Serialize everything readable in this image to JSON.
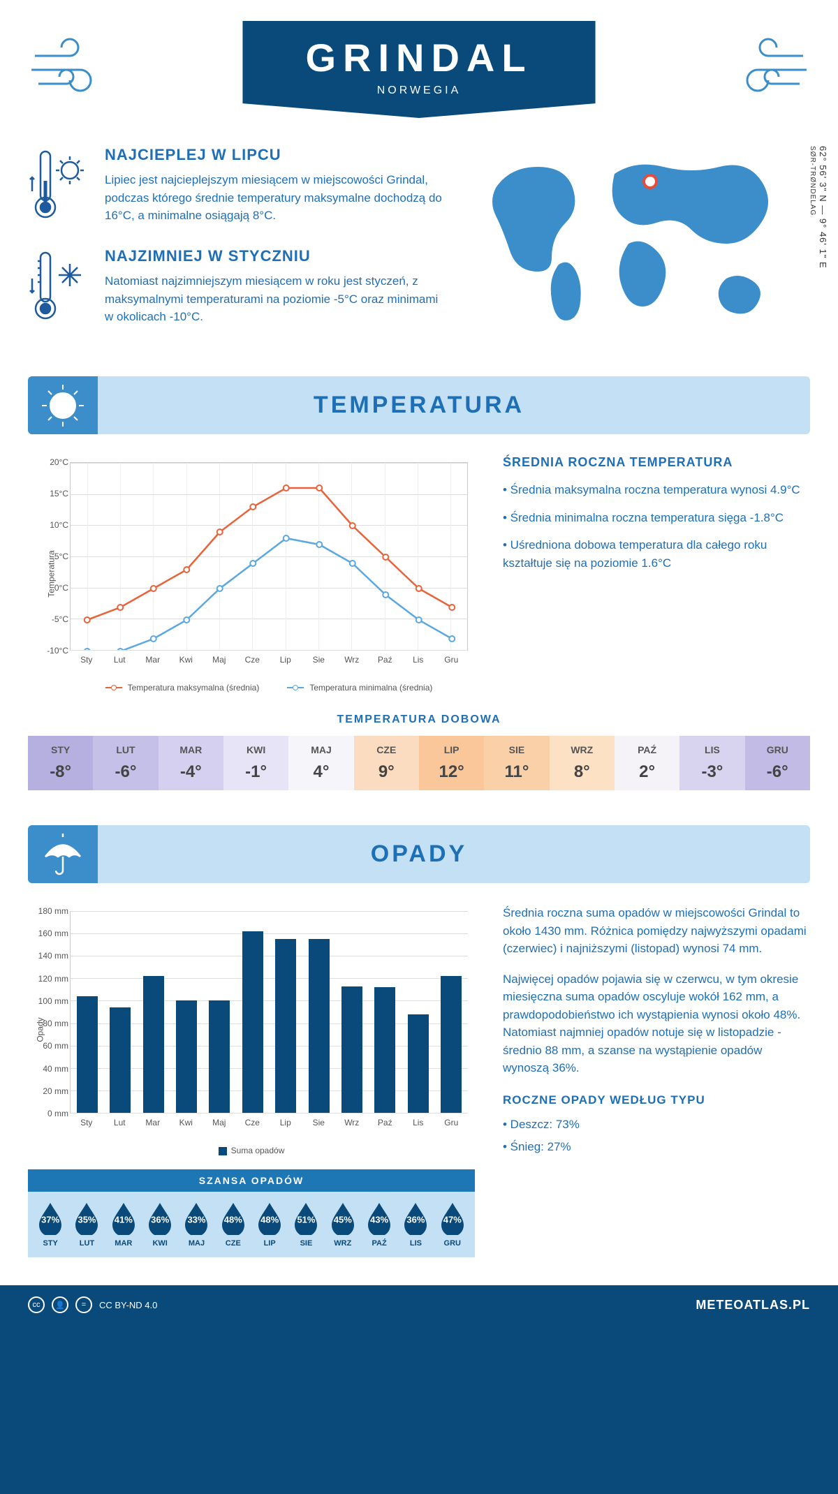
{
  "header": {
    "title": "GRINDAL",
    "country": "NORWEGIA"
  },
  "coords": {
    "lat": "62° 56' 3\" N",
    "lon": "9° 46' 1\" E",
    "region": "SØR-TRØNDELAG"
  },
  "warm": {
    "title": "NAJCIEPLEJ W LIPCU",
    "text": "Lipiec jest najcieplejszym miesiącem w miejscowości Grindal, podczas którego średnie temperatury maksymalne dochodzą do 16°C, a minimalne osiągają 8°C."
  },
  "cold": {
    "title": "NAJZIMNIEJ W STYCZNIU",
    "text": "Natomiast najzimniejszym miesiącem w roku jest styczeń, z maksymalnymi temperaturami na poziomie -5°C oraz minimami w okolicach -10°C."
  },
  "tempSection": {
    "title": "TEMPERATURA"
  },
  "tempChart": {
    "months": [
      "Sty",
      "Lut",
      "Mar",
      "Kwi",
      "Maj",
      "Cze",
      "Lip",
      "Sie",
      "Wrz",
      "Paź",
      "Lis",
      "Gru"
    ],
    "max": [
      -5,
      -3,
      0,
      3,
      9,
      13,
      16,
      16,
      10,
      5,
      0,
      -3
    ],
    "min": [
      -10,
      -10,
      -8,
      -5,
      0,
      4,
      8,
      7,
      4,
      -1,
      -5,
      -8
    ],
    "ymin": -10,
    "ymax": 20,
    "ystep": 5,
    "ylabel": "Temperatura",
    "max_color": "#e8623a",
    "min_color": "#5ba8e0",
    "legend_max": "Temperatura maksymalna (średnia)",
    "legend_min": "Temperatura minimalna (średnia)",
    "grid_color": "#dddddd"
  },
  "tempSide": {
    "title": "ŚREDNIA ROCZNA TEMPERATURA",
    "lines": [
      "• Średnia maksymalna roczna temperatura wynosi 4.9°C",
      "• Średnia minimalna roczna temperatura sięga -1.8°C",
      "• Uśredniona dobowa temperatura dla całego roku kształtuje się na poziomie 1.6°C"
    ]
  },
  "daily": {
    "title": "TEMPERATURA DOBOWA",
    "months": [
      "STY",
      "LUT",
      "MAR",
      "KWI",
      "MAJ",
      "CZE",
      "LIP",
      "SIE",
      "WRZ",
      "PAŹ",
      "LIS",
      "GRU"
    ],
    "values": [
      "-8°",
      "-6°",
      "-4°",
      "-1°",
      "4°",
      "9°",
      "12°",
      "11°",
      "8°",
      "2°",
      "-3°",
      "-6°"
    ],
    "colors": [
      "#b5b0e0",
      "#c5c0e8",
      "#d5d0f0",
      "#e7e4f7",
      "#f5f5fa",
      "#fbdcc0",
      "#f9c79a",
      "#fad0a8",
      "#fce1c5",
      "#f5f3f8",
      "#d8d3ef",
      "#c1bbe6"
    ]
  },
  "precipSection": {
    "title": "OPADY"
  },
  "precipChart": {
    "months": [
      "Sty",
      "Lut",
      "Mar",
      "Kwi",
      "Maj",
      "Cze",
      "Lip",
      "Sie",
      "Wrz",
      "Paź",
      "Lis",
      "Gru"
    ],
    "values": [
      104,
      94,
      122,
      100,
      100,
      162,
      155,
      155,
      113,
      112,
      88,
      122
    ],
    "ymax": 180,
    "ystep": 20,
    "ylabel": "Opady",
    "bar_color": "#0a4a7a",
    "legend": "Suma opadów"
  },
  "precipText": {
    "p1": "Średnia roczna suma opadów w miejscowości Grindal to około 1430 mm. Różnica pomiędzy najwyższymi opadami (czerwiec) i najniższymi (listopad) wynosi 74 mm.",
    "p2": "Najwięcej opadów pojawia się w czerwcu, w tym okresie miesięczna suma opadów oscyluje wokół 162 mm, a prawdopodobieństwo ich wystąpienia wynosi około 48%. Natomiast najmniej opadów notuje się w listopadzie - średnio 88 mm, a szanse na wystąpienie opadów wynoszą 36%.",
    "type_title": "ROCZNE OPADY WEDŁUG TYPU",
    "type_lines": [
      "• Deszcz: 73%",
      "• Śnieg: 27%"
    ]
  },
  "chance": {
    "title": "SZANSA OPADÓW",
    "months": [
      "STY",
      "LUT",
      "MAR",
      "KWI",
      "MAJ",
      "CZE",
      "LIP",
      "SIE",
      "WRZ",
      "PAŹ",
      "LIS",
      "GRU"
    ],
    "values": [
      "37%",
      "35%",
      "41%",
      "36%",
      "33%",
      "48%",
      "48%",
      "51%",
      "45%",
      "43%",
      "36%",
      "47%"
    ],
    "drop_color": "#0a4a7a"
  },
  "footer": {
    "license": "CC BY-ND 4.0",
    "site": "METEOATLAS.PL"
  }
}
